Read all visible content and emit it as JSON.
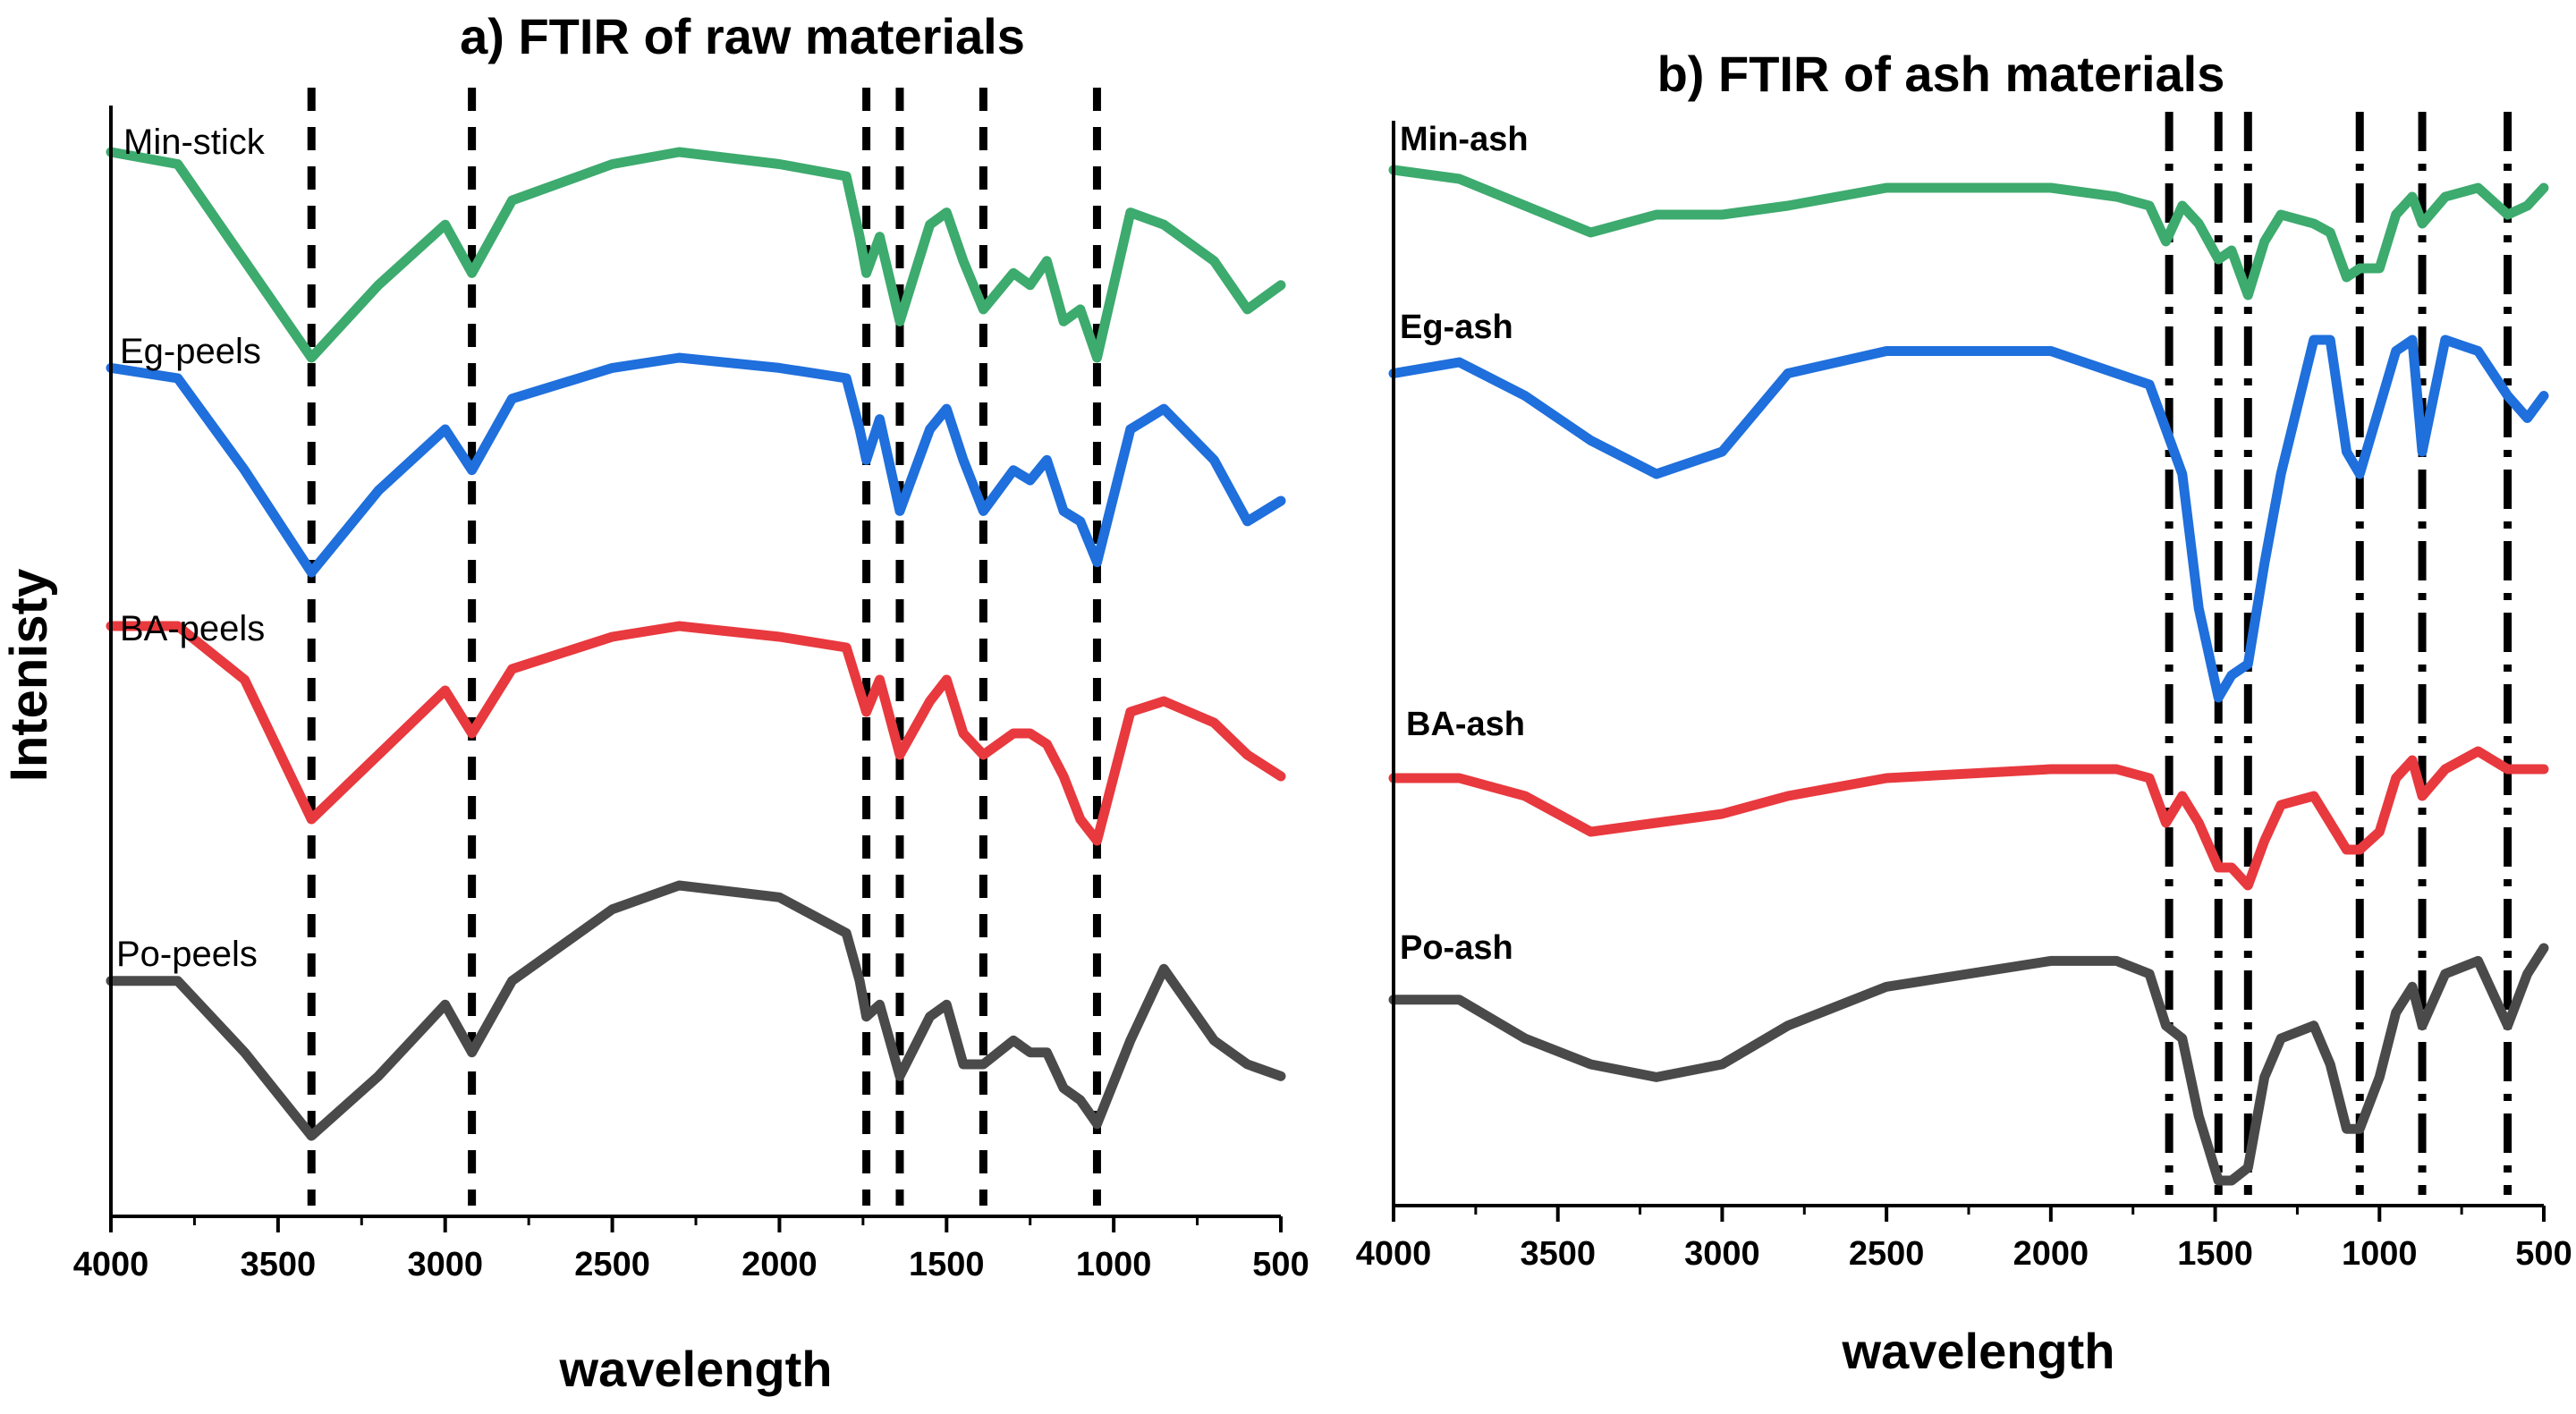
{
  "ylabel": "Intenisty",
  "colors": {
    "green": "#3daa6e",
    "blue": "#1f6fdc",
    "red": "#e8393e",
    "gray": "#4a4a4a"
  },
  "chart_data": [
    {
      "id": "a",
      "type": "line",
      "title": "a) FTIR of raw materials",
      "xlabel": "wavelength",
      "ylabel": "Intenisty",
      "xlim": [
        4000,
        500
      ],
      "ylim": [
        0,
        100
      ],
      "xticks": [
        4000,
        3500,
        3000,
        2500,
        2000,
        1500,
        1000,
        500
      ],
      "xticklabels": [
        "4000",
        "3500",
        "3000",
        "2500",
        "2000",
        "1500",
        "1000",
        "500"
      ],
      "marker_lines": [
        3400,
        2920,
        1740,
        1640,
        1390,
        1050
      ],
      "marker_style": "dashed",
      "series": [
        {
          "name": "Min-stick",
          "color": "#3daa6e",
          "x": [
            4000,
            3800,
            3600,
            3400,
            3200,
            3000,
            2920,
            2800,
            2500,
            2300,
            2000,
            1800,
            1760,
            1740,
            1700,
            1640,
            1550,
            1500,
            1450,
            1390,
            1300,
            1250,
            1200,
            1150,
            1100,
            1050,
            950,
            850,
            700,
            600,
            500
          ],
          "values": [
            93,
            92,
            84,
            76,
            82,
            87,
            83,
            89,
            92,
            93,
            92,
            91,
            86,
            83,
            86,
            79,
            87,
            88,
            84,
            80,
            83,
            82,
            84,
            79,
            80,
            76,
            88,
            87,
            84,
            80,
            82
          ]
        },
        {
          "name": "Eg-peels",
          "color": "#1f6fdc",
          "x": [
            4000,
            3800,
            3600,
            3400,
            3200,
            3000,
            2920,
            2800,
            2500,
            2300,
            2000,
            1800,
            1760,
            1740,
            1700,
            1640,
            1550,
            1500,
            1450,
            1390,
            1300,
            1250,
            1200,
            1150,
            1100,
            1050,
            950,
            850,
            700,
            600,
            500
          ],
          "values": [
            72,
            71,
            62,
            52,
            60,
            66,
            62,
            69,
            72,
            73,
            72,
            71,
            66,
            63,
            67,
            58,
            66,
            68,
            63,
            58,
            62,
            61,
            63,
            58,
            57,
            53,
            66,
            68,
            63,
            57,
            59
          ]
        },
        {
          "name": "BA-peels",
          "color": "#e8393e",
          "x": [
            4000,
            3800,
            3600,
            3400,
            3200,
            3000,
            2920,
            2800,
            2500,
            2300,
            2000,
            1800,
            1760,
            1740,
            1700,
            1640,
            1550,
            1500,
            1450,
            1390,
            1300,
            1250,
            1200,
            1150,
            1100,
            1050,
            950,
            850,
            700,
            600,
            500
          ],
          "values": [
            48,
            48,
            43,
            30,
            36,
            42,
            38,
            44,
            47,
            48,
            47,
            46,
            42,
            40,
            43,
            36,
            41,
            43,
            38,
            36,
            38,
            38,
            37,
            34,
            30,
            28,
            40,
            41,
            39,
            36,
            34
          ]
        },
        {
          "name": "Po-peels",
          "color": "#4a4a4a",
          "x": [
            4000,
            3800,
            3600,
            3400,
            3200,
            3000,
            2920,
            2800,
            2500,
            2300,
            2000,
            1800,
            1760,
            1740,
            1700,
            1640,
            1550,
            1500,
            1450,
            1390,
            1300,
            1250,
            1200,
            1150,
            1100,
            1050,
            950,
            850,
            700,
            600,
            500
          ],
          "values": [
            18,
            18,
            12,
            5,
            10,
            16,
            12,
            18,
            24,
            26,
            25,
            22,
            18,
            15,
            16,
            10,
            15,
            16,
            11,
            11,
            13,
            12,
            12,
            9,
            8,
            6,
            13,
            19,
            13,
            11,
            10
          ]
        }
      ]
    },
    {
      "id": "b",
      "type": "line",
      "title": "b) FTIR of ash materials",
      "xlabel": "wavelength",
      "ylabel": "Intenisty",
      "xlim": [
        4000,
        500
      ],
      "ylim": [
        0,
        100
      ],
      "xticks": [
        4000,
        3500,
        3000,
        2500,
        2000,
        1500,
        1000,
        500
      ],
      "xticklabels": [
        "4000",
        "3500",
        "3000",
        "2500",
        "2000",
        "1500",
        "1000",
        "500"
      ],
      "marker_lines": [
        1640,
        1490,
        1400,
        1060,
        870,
        610
      ],
      "marker_style": "dash-dot",
      "series": [
        {
          "name": "Min-ash",
          "color": "#3daa6e",
          "x": [
            4000,
            3800,
            3600,
            3400,
            3200,
            3000,
            2800,
            2500,
            2000,
            1800,
            1700,
            1650,
            1600,
            1550,
            1490,
            1450,
            1400,
            1350,
            1300,
            1200,
            1150,
            1100,
            1060,
            1000,
            950,
            900,
            870,
            800,
            700,
            610,
            550,
            500
          ],
          "values": [
            91,
            90,
            87,
            84,
            86,
            86,
            87,
            89,
            89,
            88,
            87,
            83,
            87,
            85,
            81,
            82,
            77,
            83,
            86,
            85,
            84,
            79,
            80,
            80,
            86,
            88,
            85,
            88,
            89,
            86,
            87,
            89
          ]
        },
        {
          "name": "Eg-ash",
          "color": "#1f6fdc",
          "x": [
            4000,
            3800,
            3600,
            3400,
            3200,
            3000,
            2800,
            2500,
            2000,
            1800,
            1700,
            1650,
            1600,
            1550,
            1490,
            1450,
            1400,
            1350,
            1300,
            1200,
            1150,
            1100,
            1060,
            1000,
            950,
            900,
            870,
            800,
            700,
            610,
            550,
            500
          ],
          "values": [
            75,
            76,
            73,
            69,
            66,
            68,
            75,
            77,
            77,
            75,
            74,
            70,
            66,
            54,
            46,
            48,
            49,
            58,
            66,
            78,
            78,
            68,
            66,
            72,
            77,
            78,
            68,
            78,
            77,
            73,
            71,
            73
          ]
        },
        {
          "name": "BA-ash",
          "color": "#e8393e",
          "x": [
            4000,
            3800,
            3600,
            3400,
            3200,
            3000,
            2800,
            2500,
            2000,
            1800,
            1700,
            1650,
            1600,
            1550,
            1490,
            1450,
            1400,
            1350,
            1300,
            1200,
            1150,
            1100,
            1060,
            1000,
            950,
            900,
            870,
            800,
            700,
            610,
            550,
            500
          ],
          "values": [
            40,
            40,
            38,
            34,
            35,
            36,
            38,
            40,
            41,
            41,
            40,
            35,
            38,
            35,
            30,
            30,
            28,
            33,
            37,
            38,
            35,
            32,
            32,
            34,
            40,
            42,
            38,
            41,
            43,
            41,
            41,
            41
          ]
        },
        {
          "name": "Po-ash",
          "color": "#4a4a4a",
          "x": [
            4000,
            3800,
            3600,
            3400,
            3200,
            3000,
            2800,
            2500,
            2000,
            1800,
            1700,
            1650,
            1600,
            1550,
            1490,
            1450,
            1400,
            1350,
            1300,
            1200,
            1150,
            1100,
            1060,
            1000,
            950,
            900,
            870,
            800,
            700,
            610,
            550,
            500
          ],
          "values": [
            19,
            19,
            16,
            14,
            13,
            14,
            17,
            20,
            22,
            22,
            21,
            17,
            16,
            10,
            5,
            5,
            6,
            13,
            16,
            17,
            14,
            9,
            9,
            13,
            18,
            20,
            17,
            21,
            22,
            17,
            21,
            23
          ]
        }
      ]
    }
  ]
}
